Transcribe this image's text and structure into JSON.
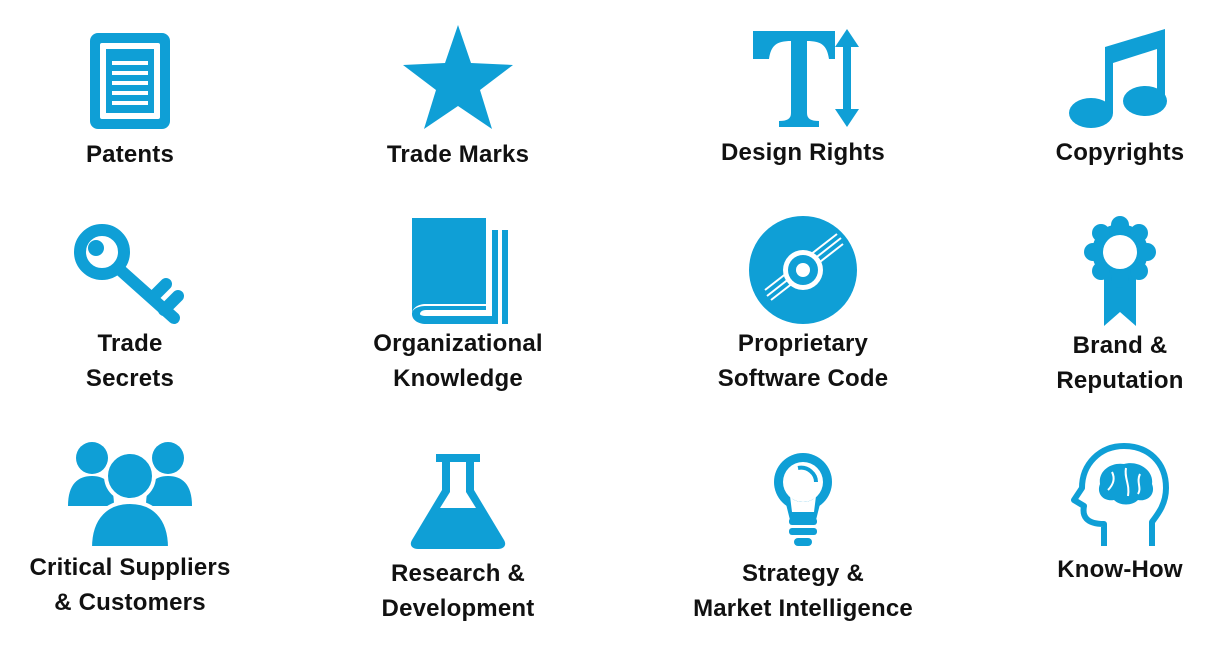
{
  "accent_color": "#0f9fd6",
  "items": [
    {
      "icon": "document-icon",
      "lines": [
        "Patents"
      ]
    },
    {
      "icon": "star-icon",
      "lines": [
        "Trade Marks"
      ]
    },
    {
      "icon": "text-size-icon",
      "lines": [
        "Design Rights"
      ]
    },
    {
      "icon": "music-note-icon",
      "lines": [
        "Copyrights"
      ]
    },
    {
      "icon": "key-icon",
      "lines": [
        "Trade",
        "Secrets"
      ]
    },
    {
      "icon": "book-icon",
      "lines": [
        "Organizational",
        "Knowledge"
      ]
    },
    {
      "icon": "disc-icon",
      "lines": [
        "Proprietary",
        "Software Code"
      ]
    },
    {
      "icon": "award-ribbon-icon",
      "lines": [
        "Brand &",
        "Reputation"
      ]
    },
    {
      "icon": "group-icon",
      "lines": [
        "Critical Suppliers",
        "& Customers"
      ]
    },
    {
      "icon": "flask-icon",
      "lines": [
        "Research &",
        "Development"
      ]
    },
    {
      "icon": "lightbulb-icon",
      "lines": [
        "Strategy &",
        "Market Intelligence"
      ]
    },
    {
      "icon": "head-brain-icon",
      "lines": [
        "Know-How"
      ]
    }
  ]
}
